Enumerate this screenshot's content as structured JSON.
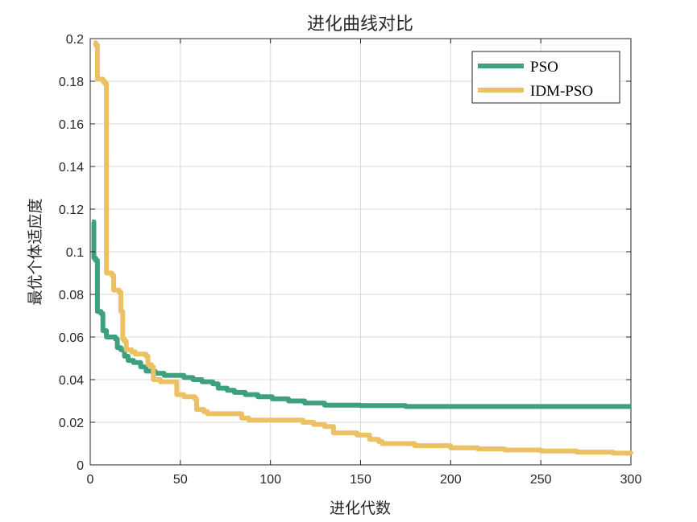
{
  "chart_data": {
    "type": "line",
    "title": "进化曲线对比",
    "xlabel": "进化代数",
    "ylabel": "最优个体适应度",
    "xlim": [
      0,
      300
    ],
    "ylim": [
      0,
      0.2
    ],
    "xticks": [
      0,
      50,
      100,
      150,
      200,
      250,
      300
    ],
    "xtick_labels": [
      "0",
      "50",
      "100",
      "150",
      "200",
      "250",
      "300"
    ],
    "yticks": [
      0,
      0.02,
      0.04,
      0.06,
      0.08,
      0.1,
      0.12,
      0.14,
      0.16,
      0.18,
      0.2
    ],
    "ytick_labels": [
      "0",
      "0.02",
      "0.04",
      "0.06",
      "0.08",
      "0.1",
      "0.12",
      "0.14",
      "0.16",
      "0.18",
      "0.2"
    ],
    "grid": true,
    "legend_position": "top-right",
    "series": [
      {
        "name": "PSO",
        "color": "#3fa07f",
        "points": [
          [
            1,
            0.114
          ],
          [
            2,
            0.097
          ],
          [
            3,
            0.096
          ],
          [
            4,
            0.072
          ],
          [
            6,
            0.071
          ],
          [
            7,
            0.063
          ],
          [
            9,
            0.06
          ],
          [
            14,
            0.059
          ],
          [
            15,
            0.055
          ],
          [
            17,
            0.054
          ],
          [
            19,
            0.051
          ],
          [
            21,
            0.049
          ],
          [
            24,
            0.048
          ],
          [
            28,
            0.046
          ],
          [
            31,
            0.044
          ],
          [
            36,
            0.043
          ],
          [
            41,
            0.042
          ],
          [
            50,
            0.042
          ],
          [
            52,
            0.041
          ],
          [
            57,
            0.04
          ],
          [
            62,
            0.039
          ],
          [
            68,
            0.038
          ],
          [
            71,
            0.036
          ],
          [
            76,
            0.035
          ],
          [
            80,
            0.034
          ],
          [
            86,
            0.033
          ],
          [
            93,
            0.032
          ],
          [
            101,
            0.031
          ],
          [
            110,
            0.03
          ],
          [
            119,
            0.029
          ],
          [
            130,
            0.028
          ],
          [
            150,
            0.0278
          ],
          [
            175,
            0.0274
          ],
          [
            200,
            0.0274
          ],
          [
            250,
            0.0274
          ],
          [
            300,
            0.0274
          ]
        ]
      },
      {
        "name": "IDM-PSO",
        "color": "#ecc064",
        "points": [
          [
            2,
            0.198
          ],
          [
            3,
            0.197
          ],
          [
            4,
            0.181
          ],
          [
            7,
            0.18
          ],
          [
            8,
            0.179
          ],
          [
            9,
            0.09
          ],
          [
            12,
            0.089
          ],
          [
            13,
            0.082
          ],
          [
            16,
            0.081
          ],
          [
            17,
            0.072
          ],
          [
            18,
            0.059
          ],
          [
            19,
            0.058
          ],
          [
            20,
            0.054
          ],
          [
            23,
            0.053
          ],
          [
            25,
            0.052
          ],
          [
            31,
            0.051
          ],
          [
            32,
            0.047
          ],
          [
            34,
            0.046
          ],
          [
            35,
            0.04
          ],
          [
            39,
            0.039
          ],
          [
            47,
            0.039
          ],
          [
            48,
            0.033
          ],
          [
            52,
            0.032
          ],
          [
            58,
            0.031
          ],
          [
            59,
            0.026
          ],
          [
            63,
            0.025
          ],
          [
            65,
            0.024
          ],
          [
            80,
            0.024
          ],
          [
            84,
            0.022
          ],
          [
            88,
            0.021
          ],
          [
            110,
            0.021
          ],
          [
            118,
            0.02
          ],
          [
            124,
            0.019
          ],
          [
            130,
            0.018
          ],
          [
            135,
            0.015
          ],
          [
            140,
            0.015
          ],
          [
            148,
            0.014
          ],
          [
            155,
            0.012
          ],
          [
            160,
            0.011
          ],
          [
            162,
            0.01
          ],
          [
            170,
            0.01
          ],
          [
            180,
            0.009
          ],
          [
            200,
            0.008
          ],
          [
            215,
            0.0075
          ],
          [
            230,
            0.007
          ],
          [
            250,
            0.0065
          ],
          [
            270,
            0.006
          ],
          [
            290,
            0.0055
          ],
          [
            300,
            0.005
          ]
        ]
      }
    ]
  }
}
